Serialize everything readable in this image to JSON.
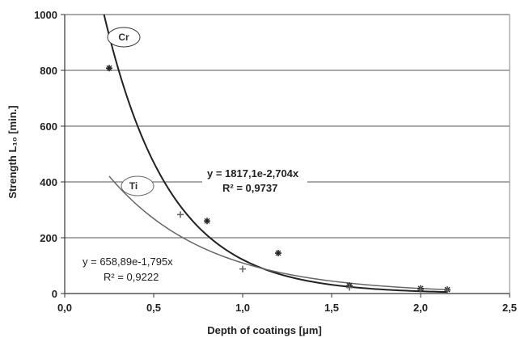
{
  "chart_data": {
    "type": "scatter",
    "xlabel": "Depth of coatings [μm]",
    "ylabel": "Strength L₁₀ [min.]",
    "xlim": [
      0,
      2.5
    ],
    "ylim": [
      0,
      1000
    ],
    "x_ticks": [
      "0,0",
      "0,5",
      "1,0",
      "1,5",
      "2,0",
      "2,5"
    ],
    "y_ticks": [
      "0",
      "200",
      "400",
      "600",
      "800",
      "1000"
    ],
    "grid": "horizontal",
    "series": [
      {
        "name": "Cr",
        "marker": "asterisk",
        "color": "#222222",
        "points": [
          {
            "x": 0.25,
            "y": 808
          },
          {
            "x": 0.8,
            "y": 260
          },
          {
            "x": 1.2,
            "y": 145
          },
          {
            "x": 1.6,
            "y": 28
          },
          {
            "x": 2.0,
            "y": 18
          },
          {
            "x": 2.15,
            "y": 14
          }
        ],
        "trendline": {
          "a": 1817.1,
          "b": -2.704,
          "x_range": [
            0.22,
            2.15
          ]
        },
        "equation": "y = 1817,1e-2,704x",
        "r_squared": "R² = 0,9737"
      },
      {
        "name": "Ti",
        "marker": "plus",
        "color": "#666666",
        "points": [
          {
            "x": 0.65,
            "y": 283
          },
          {
            "x": 1.0,
            "y": 88
          },
          {
            "x": 1.6,
            "y": 22
          },
          {
            "x": 2.0,
            "y": 15
          },
          {
            "x": 2.15,
            "y": 12
          }
        ],
        "trendline": {
          "a": 658.89,
          "b": -1.795,
          "x_range": [
            0.25,
            2.15
          ]
        },
        "equation": "y = 658,89e-1,795x",
        "r_squared": "R² = 0,9222"
      }
    ]
  }
}
